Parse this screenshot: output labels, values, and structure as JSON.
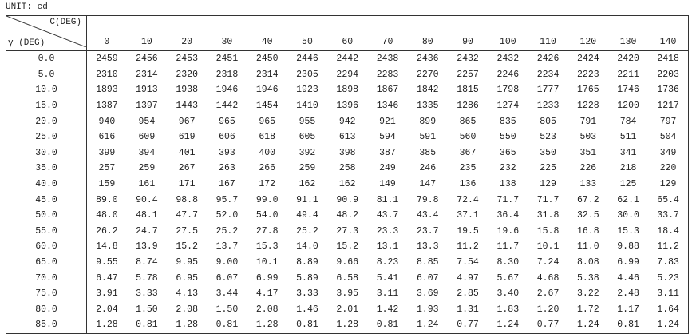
{
  "unit": "UNIT: cd",
  "corner": {
    "c_label": "C(DEG)",
    "gamma_label": "γ (DEG)"
  },
  "columns": [
    "0",
    "10",
    "20",
    "30",
    "40",
    "50",
    "60",
    "70",
    "80",
    "90",
    "100",
    "110",
    "120",
    "130",
    "140"
  ],
  "rows": [
    {
      "angle": "0.0",
      "values": [
        "2459",
        "2456",
        "2453",
        "2451",
        "2450",
        "2446",
        "2442",
        "2438",
        "2436",
        "2432",
        "2432",
        "2426",
        "2424",
        "2420",
        "2418"
      ]
    },
    {
      "angle": "5.0",
      "values": [
        "2310",
        "2314",
        "2320",
        "2318",
        "2314",
        "2305",
        "2294",
        "2283",
        "2270",
        "2257",
        "2246",
        "2234",
        "2223",
        "2211",
        "2203"
      ]
    },
    {
      "angle": "10.0",
      "values": [
        "1893",
        "1913",
        "1938",
        "1946",
        "1946",
        "1923",
        "1898",
        "1867",
        "1842",
        "1815",
        "1798",
        "1777",
        "1765",
        "1746",
        "1736"
      ]
    },
    {
      "angle": "15.0",
      "values": [
        "1387",
        "1397",
        "1443",
        "1442",
        "1454",
        "1410",
        "1396",
        "1346",
        "1335",
        "1286",
        "1274",
        "1233",
        "1228",
        "1200",
        "1217"
      ]
    },
    {
      "angle": "20.0",
      "values": [
        "940",
        "954",
        "967",
        "965",
        "965",
        "955",
        "942",
        "921",
        "899",
        "865",
        "835",
        "805",
        "791",
        "784",
        "797"
      ]
    },
    {
      "angle": "25.0",
      "values": [
        "616",
        "609",
        "619",
        "606",
        "618",
        "605",
        "613",
        "594",
        "591",
        "560",
        "550",
        "523",
        "503",
        "511",
        "504"
      ]
    },
    {
      "angle": "30.0",
      "values": [
        "399",
        "394",
        "401",
        "393",
        "400",
        "392",
        "398",
        "387",
        "385",
        "367",
        "365",
        "350",
        "351",
        "341",
        "349"
      ]
    },
    {
      "angle": "35.0",
      "values": [
        "257",
        "259",
        "267",
        "263",
        "266",
        "259",
        "258",
        "249",
        "246",
        "235",
        "232",
        "225",
        "226",
        "218",
        "220"
      ]
    },
    {
      "angle": "40.0",
      "values": [
        "159",
        "161",
        "171",
        "167",
        "172",
        "162",
        "162",
        "149",
        "147",
        "136",
        "138",
        "129",
        "133",
        "125",
        "129"
      ]
    },
    {
      "angle": "45.0",
      "values": [
        "89.0",
        "90.4",
        "98.8",
        "95.7",
        "99.0",
        "91.1",
        "90.9",
        "81.1",
        "79.8",
        "72.4",
        "71.7",
        "71.7",
        "67.2",
        "62.1",
        "65.4"
      ]
    },
    {
      "angle": "50.0",
      "values": [
        "48.0",
        "48.1",
        "47.7",
        "52.0",
        "54.0",
        "49.4",
        "48.2",
        "43.7",
        "43.4",
        "37.1",
        "36.4",
        "31.8",
        "32.5",
        "30.0",
        "33.7"
      ]
    },
    {
      "angle": "55.0",
      "values": [
        "26.2",
        "24.7",
        "27.5",
        "25.2",
        "27.8",
        "25.2",
        "27.3",
        "23.3",
        "23.7",
        "19.5",
        "19.6",
        "15.8",
        "16.8",
        "15.3",
        "18.4"
      ]
    },
    {
      "angle": "60.0",
      "values": [
        "14.8",
        "13.9",
        "15.2",
        "13.7",
        "15.3",
        "14.0",
        "15.2",
        "13.1",
        "13.3",
        "11.2",
        "11.7",
        "10.1",
        "11.0",
        "9.88",
        "11.2"
      ]
    },
    {
      "angle": "65.0",
      "values": [
        "9.55",
        "8.74",
        "9.95",
        "9.00",
        "10.1",
        "8.89",
        "9.66",
        "8.23",
        "8.85",
        "7.54",
        "8.30",
        "7.24",
        "8.08",
        "6.99",
        "7.83"
      ]
    },
    {
      "angle": "70.0",
      "values": [
        "6.47",
        "5.78",
        "6.95",
        "6.07",
        "6.99",
        "5.89",
        "6.58",
        "5.41",
        "6.07",
        "4.97",
        "5.67",
        "4.68",
        "5.38",
        "4.46",
        "5.23"
      ]
    },
    {
      "angle": "75.0",
      "values": [
        "3.91",
        "3.33",
        "4.13",
        "3.44",
        "4.17",
        "3.33",
        "3.95",
        "3.11",
        "3.69",
        "2.85",
        "3.40",
        "2.67",
        "3.22",
        "2.48",
        "3.11"
      ]
    },
    {
      "angle": "80.0",
      "values": [
        "2.04",
        "1.50",
        "2.08",
        "1.50",
        "2.08",
        "1.46",
        "2.01",
        "1.42",
        "1.93",
        "1.31",
        "1.83",
        "1.20",
        "1.72",
        "1.17",
        "1.64"
      ]
    },
    {
      "angle": "85.0",
      "values": [
        "1.28",
        "0.81",
        "1.28",
        "0.81",
        "1.28",
        "0.81",
        "1.28",
        "0.81",
        "1.24",
        "0.77",
        "1.24",
        "0.77",
        "1.24",
        "0.81",
        "1.24"
      ]
    }
  ]
}
